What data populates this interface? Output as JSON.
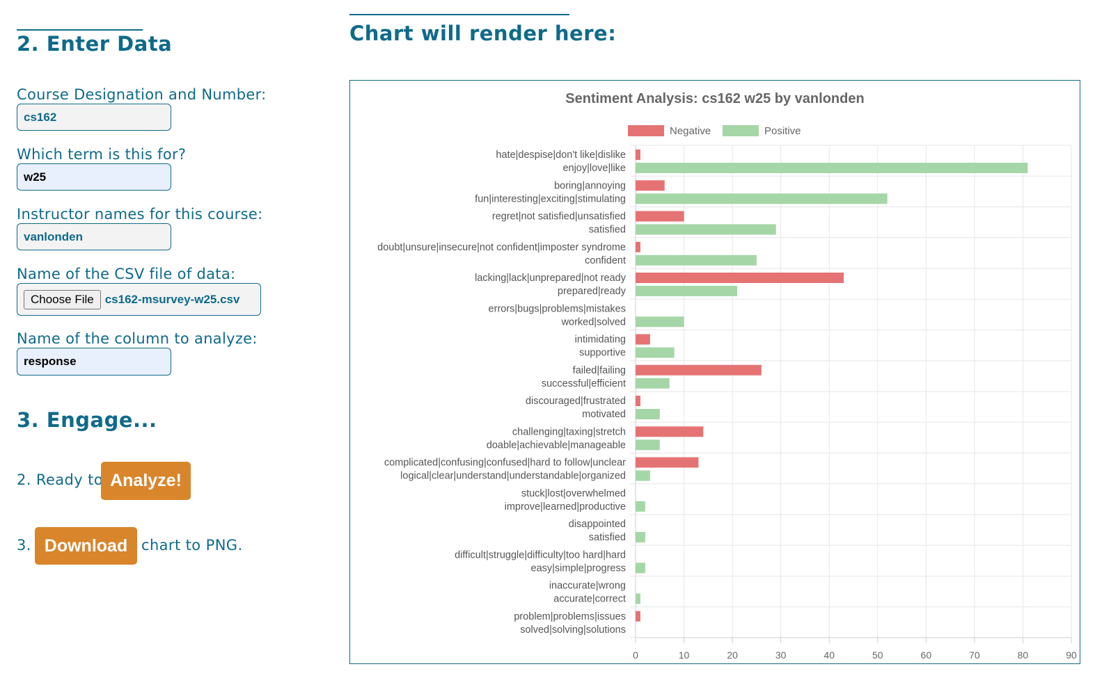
{
  "enter_data": {
    "heading": "2. Enter Data",
    "course_label": "Course Designation and Number:",
    "course_value": "cs162",
    "term_label": "Which term is this for?",
    "term_value": "w25",
    "instructor_label": "Instructor names for this course:",
    "instructor_value": "vanlonden",
    "csv_label": "Name of the CSV file of data:",
    "choose_file_label": "Choose File",
    "csv_filename": "cs162-msurvey-w25.csv",
    "column_label": "Name of the column to analyze:",
    "column_value": "response"
  },
  "engage": {
    "heading": "3. Engage...",
    "analyze_prefix": "2. Ready to",
    "analyze_button": "Analyze!",
    "download_prefix": "3.",
    "download_button": "Download",
    "download_suffix": "chart to PNG."
  },
  "chart_area": {
    "heading": "Chart will render here:"
  },
  "chart_data": {
    "type": "bar",
    "orientation": "horizontal",
    "title": "Sentiment Analysis: cs162 w25 by vanlonden",
    "legend_position": "top",
    "grid": true,
    "xlim": [
      0,
      90
    ],
    "x_ticks": [
      "0",
      "10",
      "20",
      "30",
      "40",
      "50",
      "60",
      "70",
      "80",
      "90"
    ],
    "colors": {
      "negative": "#e57373",
      "positive": "#a5d6a7"
    },
    "series": [
      {
        "name": "Negative"
      },
      {
        "name": "Positive"
      }
    ],
    "categories": [
      {
        "neg_label": "hate|despise|don't like|dislike",
        "pos_label": "enjoy|love|like",
        "negative": 1,
        "positive": 81
      },
      {
        "neg_label": "boring|annoying",
        "pos_label": "fun|interesting|exciting|stimulating",
        "negative": 6,
        "positive": 52
      },
      {
        "neg_label": "regret|not satisfied|unsatisfied",
        "pos_label": "satisfied",
        "negative": 10,
        "positive": 29
      },
      {
        "neg_label": "doubt|unsure|insecure|not confident|imposter syndrome",
        "pos_label": "confident",
        "negative": 1,
        "positive": 25
      },
      {
        "neg_label": "lacking|lack|unprepared|not ready",
        "pos_label": "prepared|ready",
        "negative": 43,
        "positive": 21
      },
      {
        "neg_label": "errors|bugs|problems|mistakes",
        "pos_label": "worked|solved",
        "negative": 0,
        "positive": 10
      },
      {
        "neg_label": "intimidating",
        "pos_label": "supportive",
        "negative": 3,
        "positive": 8
      },
      {
        "neg_label": "failed|failing",
        "pos_label": "successful|efficient",
        "negative": 26,
        "positive": 7
      },
      {
        "neg_label": "discouraged|frustrated",
        "pos_label": "motivated",
        "negative": 1,
        "positive": 5
      },
      {
        "neg_label": "challenging|taxing|stretch",
        "pos_label": "doable|achievable|manageable",
        "negative": 14,
        "positive": 5
      },
      {
        "neg_label": "complicated|confusing|confused|hard to follow|unclear",
        "pos_label": "logical|clear|understand|understandable|organized",
        "negative": 13,
        "positive": 3
      },
      {
        "neg_label": "stuck|lost|overwhelmed",
        "pos_label": "improve|learned|productive",
        "negative": 0,
        "positive": 2
      },
      {
        "neg_label": "disappointed",
        "pos_label": "satisfied",
        "negative": 0,
        "positive": 2
      },
      {
        "neg_label": "difficult|struggle|difficulty|too hard|hard",
        "pos_label": "easy|simple|progress",
        "negative": 0,
        "positive": 2
      },
      {
        "neg_label": "inaccurate|wrong",
        "pos_label": "accurate|correct",
        "negative": 0,
        "positive": 1
      },
      {
        "neg_label": "problem|problems|issues",
        "pos_label": "solved|solving|solutions",
        "negative": 1,
        "positive": 0
      }
    ]
  }
}
